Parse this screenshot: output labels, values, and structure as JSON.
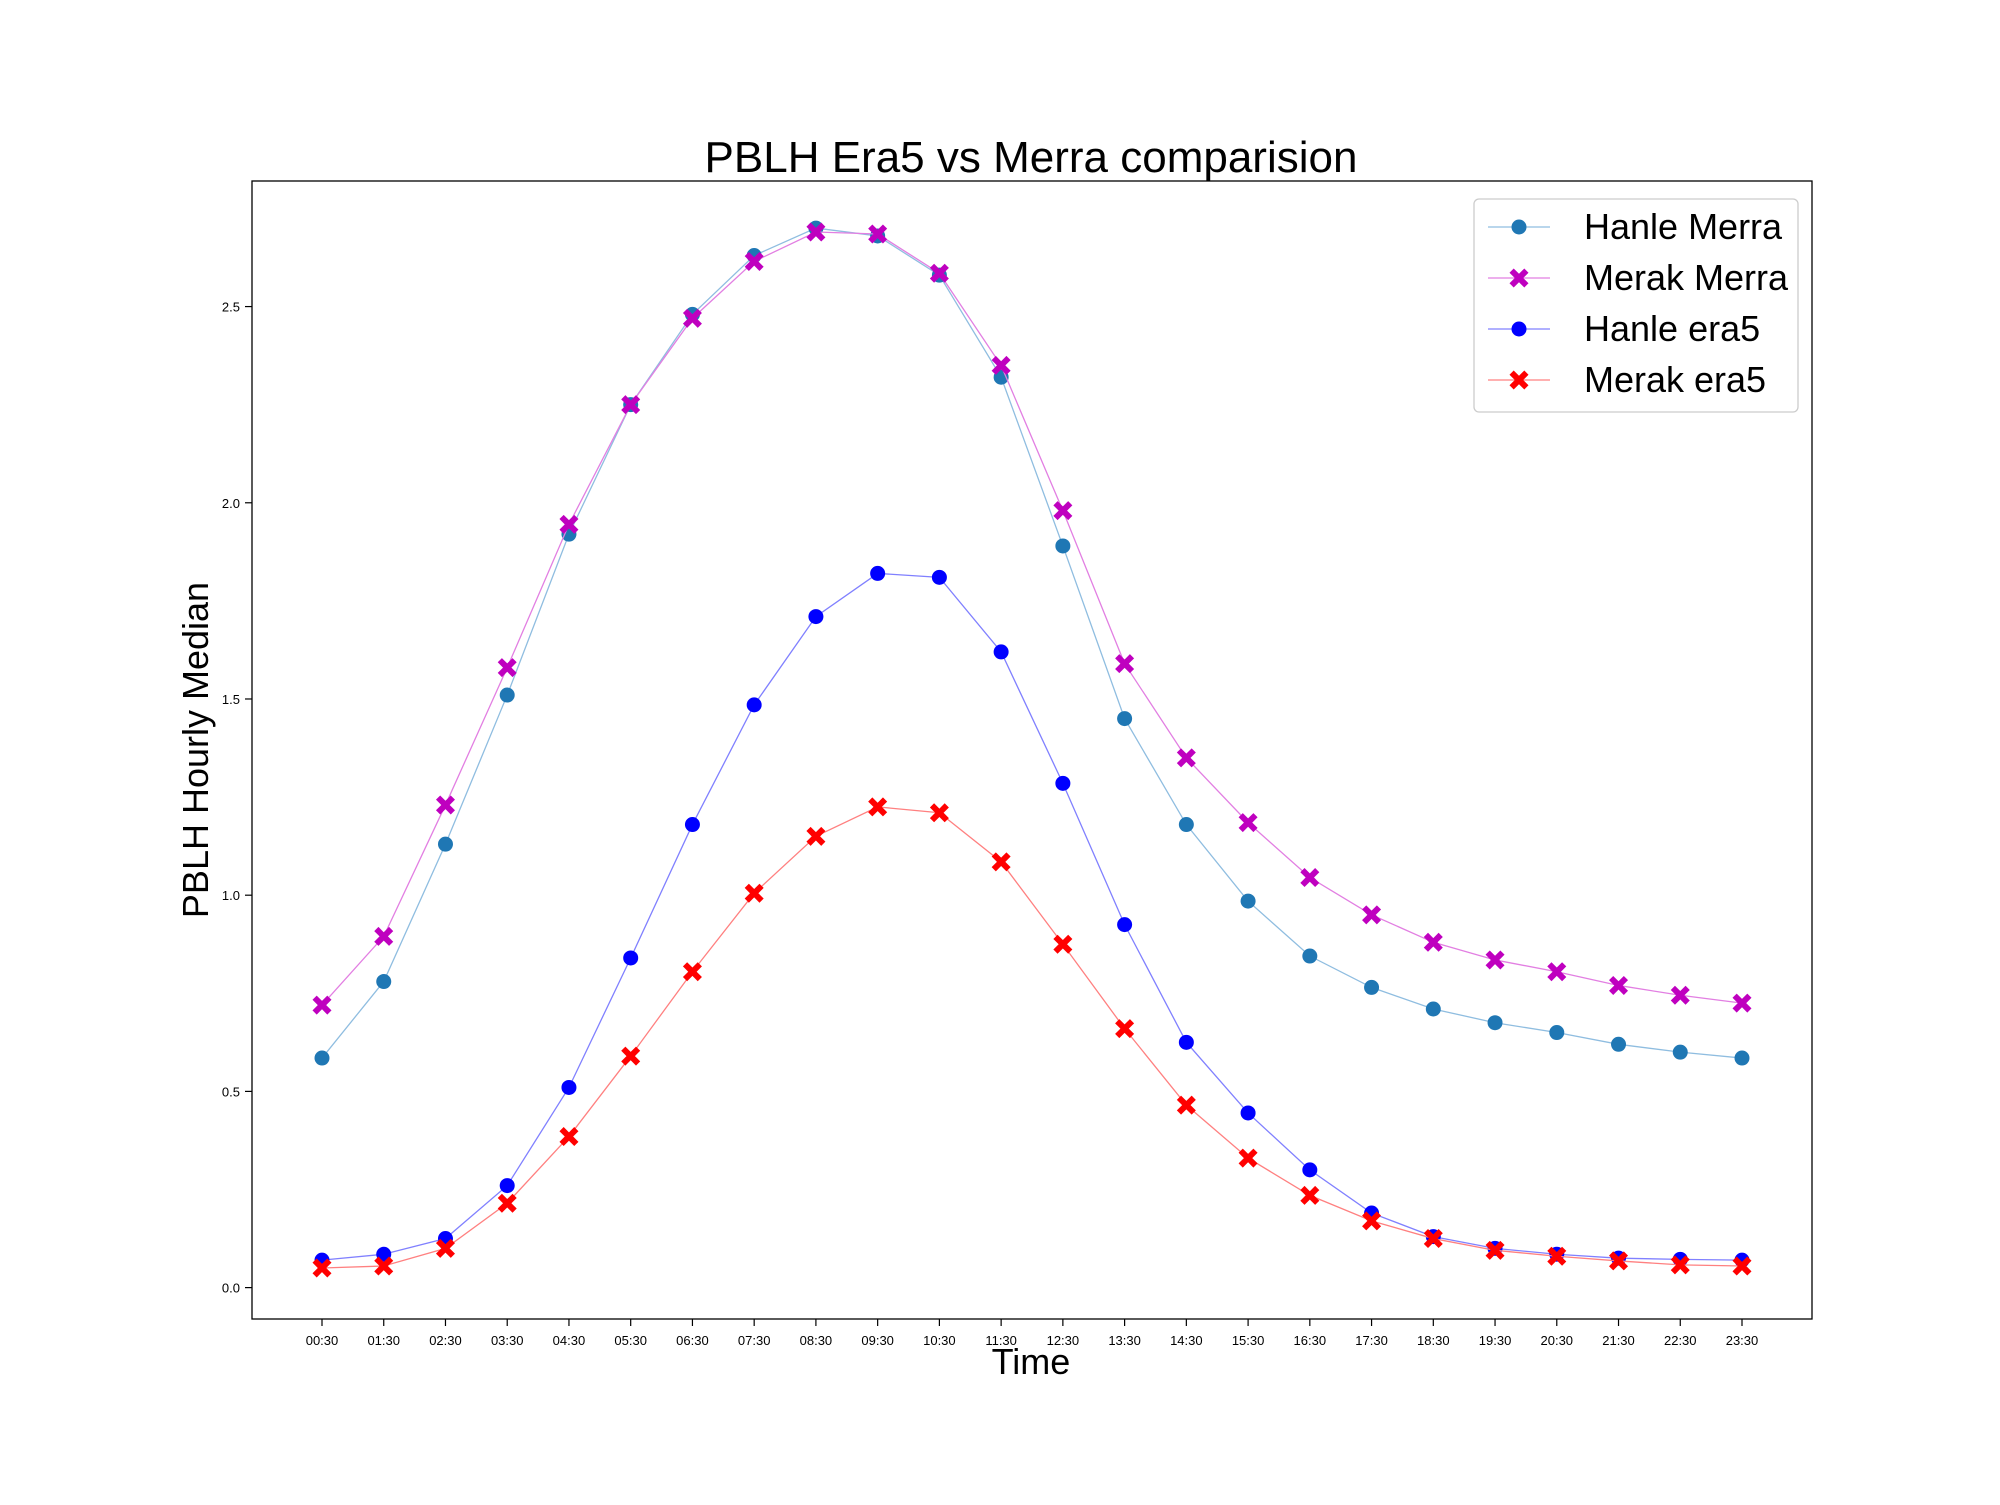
{
  "chart_data": {
    "type": "line",
    "title": "PBLH Era5 vs Merra comparision",
    "xlabel": "Time",
    "ylabel": "PBLH Hourly Median",
    "categories": [
      "00:30",
      "01:30",
      "02:30",
      "03:30",
      "04:30",
      "05:30",
      "06:30",
      "07:30",
      "08:30",
      "09:30",
      "10:30",
      "11:30",
      "12:30",
      "13:30",
      "14:30",
      "15:30",
      "16:30",
      "17:30",
      "18:30",
      "19:30",
      "20:30",
      "21:30",
      "22:30",
      "23:30"
    ],
    "ylim": [
      -0.08,
      2.82
    ],
    "yticks": [
      0.0,
      0.5,
      1.0,
      1.5,
      2.0,
      2.5
    ],
    "ytick_labels": [
      "0.0",
      "0.5",
      "1.0",
      "1.5",
      "2.0",
      "2.5"
    ],
    "grid": false,
    "legend_position": "top-right",
    "series": [
      {
        "name": "Hanle Merra",
        "color": "#1f77b4",
        "line_color": "#8fbde0",
        "marker": "circle",
        "values": [
          0.585,
          0.78,
          1.13,
          1.51,
          1.92,
          2.25,
          2.48,
          2.63,
          2.7,
          2.68,
          2.58,
          2.32,
          1.89,
          1.45,
          1.18,
          0.985,
          0.845,
          0.765,
          0.71,
          0.675,
          0.65,
          0.62,
          0.6,
          0.585
        ]
      },
      {
        "name": "Merak Merra",
        "color": "#bf00bf",
        "line_color": "#e27fe2",
        "marker": "x",
        "values": [
          0.72,
          0.895,
          1.23,
          1.58,
          1.945,
          2.25,
          2.47,
          2.615,
          2.69,
          2.685,
          2.585,
          2.35,
          1.98,
          1.59,
          1.35,
          1.185,
          1.045,
          0.95,
          0.88,
          0.835,
          0.805,
          0.77,
          0.745,
          0.725
        ]
      },
      {
        "name": "Hanle era5",
        "color": "#0000ff",
        "line_color": "#8080ff",
        "marker": "circle",
        "values": [
          0.07,
          0.085,
          0.125,
          0.26,
          0.51,
          0.84,
          1.18,
          1.485,
          1.71,
          1.82,
          1.81,
          1.62,
          1.285,
          0.925,
          0.625,
          0.445,
          0.3,
          0.19,
          0.13,
          0.1,
          0.085,
          0.075,
          0.072,
          0.07
        ]
      },
      {
        "name": "Merak era5",
        "color": "#ff0000",
        "line_color": "#ff8080",
        "marker": "x",
        "values": [
          0.05,
          0.055,
          0.1,
          0.215,
          0.385,
          0.59,
          0.805,
          1.005,
          1.15,
          1.225,
          1.21,
          1.085,
          0.875,
          0.66,
          0.465,
          0.33,
          0.235,
          0.17,
          0.125,
          0.095,
          0.08,
          0.068,
          0.058,
          0.055
        ]
      }
    ]
  }
}
